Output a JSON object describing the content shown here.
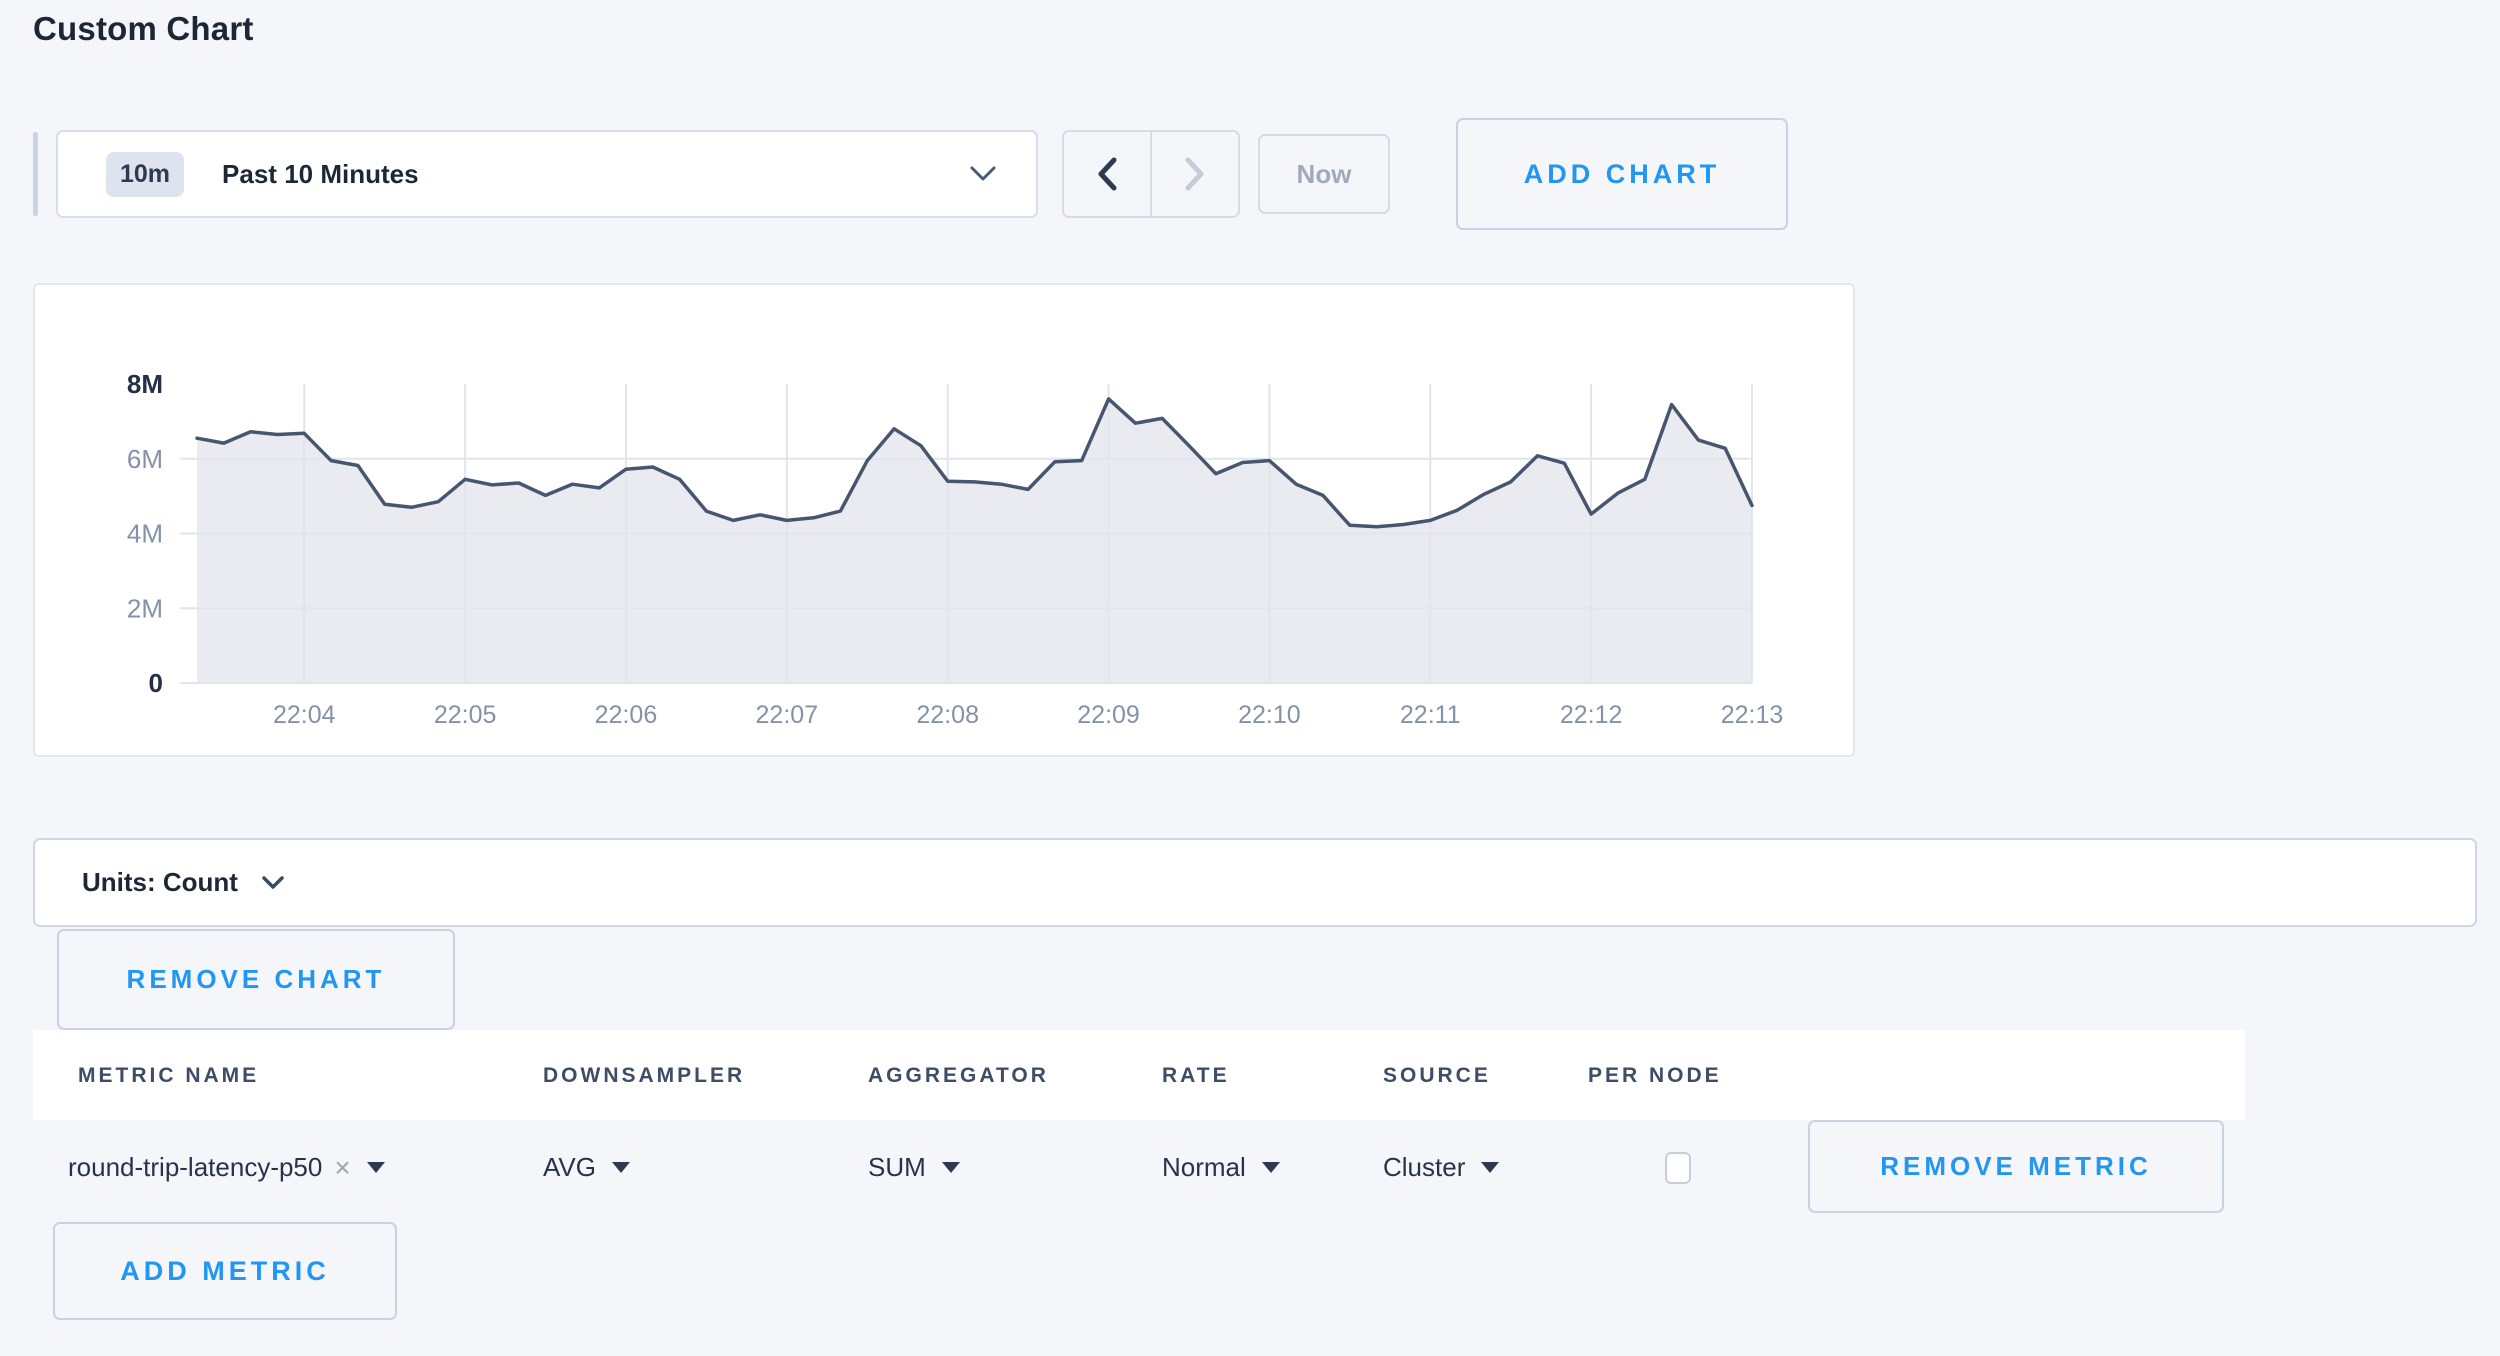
{
  "title": "Custom Chart",
  "controls": {
    "time_range": {
      "badge": "10m",
      "label": "Past 10 Minutes"
    },
    "now_label": "Now",
    "add_chart_label": "ADD CHART"
  },
  "chart_data": {
    "type": "area",
    "title": "",
    "xlabel": "",
    "ylabel": "",
    "start_time": "22:03:20",
    "interval_seconds": 10,
    "x_ticks": [
      "22:04",
      "22:05",
      "22:06",
      "22:07",
      "22:08",
      "22:09",
      "22:10",
      "22:11",
      "22:12",
      "22:13"
    ],
    "y_ticks": [
      "0",
      "2M",
      "4M",
      "6M",
      "8M"
    ],
    "ylim_millions": [
      0,
      8
    ],
    "grid": true,
    "legend": "none",
    "series": [
      {
        "name": "round-trip-latency-p50",
        "unit": "count",
        "values_millions": [
          6.55,
          6.42,
          6.72,
          6.65,
          6.68,
          5.95,
          5.82,
          4.78,
          4.7,
          4.85,
          5.45,
          5.3,
          5.35,
          5.02,
          5.32,
          5.22,
          5.72,
          5.78,
          5.45,
          4.6,
          4.35,
          4.5,
          4.35,
          4.42,
          4.6,
          5.95,
          6.8,
          6.35,
          5.4,
          5.38,
          5.32,
          5.18,
          5.92,
          5.95,
          7.6,
          6.95,
          7.08,
          6.35,
          5.6,
          5.9,
          5.95,
          5.32,
          5.02,
          4.22,
          4.18,
          4.24,
          4.35,
          4.62,
          5.05,
          5.38,
          6.08,
          5.88,
          4.52,
          5.08,
          5.45,
          7.45,
          6.5,
          6.28,
          4.75
        ]
      }
    ],
    "line_color": "#47566F",
    "fill_color": "#E9EBF0"
  },
  "units_bar": {
    "label": "Units: Count"
  },
  "chart_actions": {
    "remove_chart_label": "REMOVE CHART"
  },
  "metrics_table": {
    "headers": [
      "METRIC NAME",
      "DOWNSAMPLER",
      "AGGREGATOR",
      "RATE",
      "SOURCE",
      "PER NODE"
    ],
    "rows": [
      {
        "metric_name": "round-trip-latency-p50",
        "clear_icon": "×",
        "downsampler": "AVG",
        "aggregator": "SUM",
        "rate": "Normal",
        "source": "Cluster",
        "per_node_checked": false,
        "remove_label": "REMOVE METRIC"
      }
    ],
    "add_metric_label": "ADD METRIC"
  },
  "colors": {
    "accent_blue": "#2196f3",
    "line": "#47566F",
    "fill": "#E9EBF0",
    "grid": "#e1e5ee",
    "axis_minor": "#8492a8",
    "axis_major": "#233048"
  }
}
